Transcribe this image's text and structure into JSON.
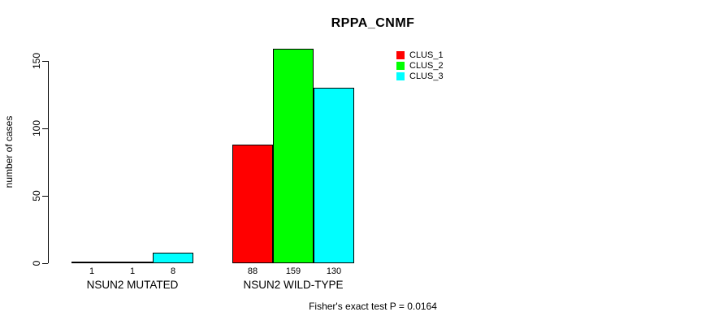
{
  "chart_data": {
    "type": "bar",
    "title": "RPPA_CNMF",
    "ylabel": "number of cases",
    "xlabel": "",
    "categories": [
      "NSUN2 MUTATED",
      "NSUN2 WILD-TYPE"
    ],
    "series": [
      {
        "name": "CLUS_1",
        "color": "#FF0000",
        "values": [
          1,
          88
        ]
      },
      {
        "name": "CLUS_2",
        "color": "#00FF00",
        "values": [
          1,
          159
        ]
      },
      {
        "name": "CLUS_3",
        "color": "#00FFFF",
        "values": [
          8,
          130
        ]
      }
    ],
    "bar_value_labels": [
      [
        "1",
        "1",
        "8"
      ],
      [
        "88",
        "159",
        "130"
      ]
    ],
    "ylim": [
      0,
      150
    ],
    "yticks": [
      0,
      50,
      100,
      150
    ],
    "grid": false,
    "legend_position": "top-right",
    "annotation": "Fisher's exact test P = 0.0164"
  },
  "colors": {
    "background": "#FFFFFF",
    "axis": "#000000",
    "text": "#000000"
  }
}
